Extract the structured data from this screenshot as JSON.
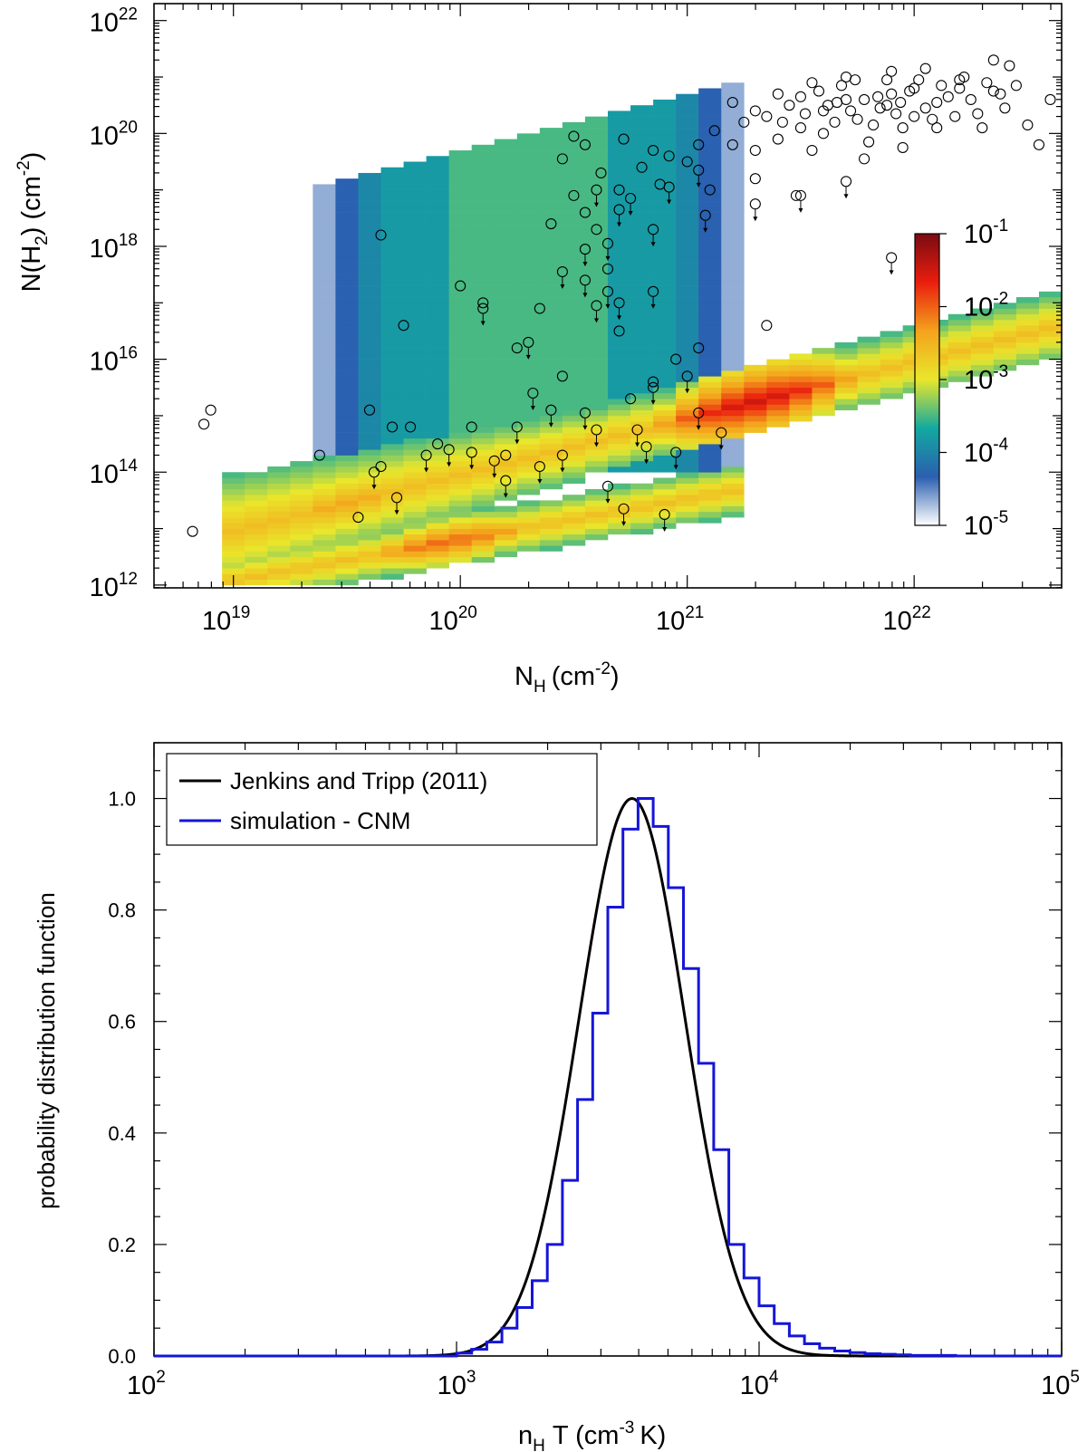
{
  "chart_data": [
    {
      "type": "heatmap",
      "title": "",
      "xlabel": "N",
      "xlabel_sub": "H",
      "xlabel_units": "(cm",
      "xlabel_units_exp": "-2",
      "xlabel_units_close": ")",
      "ylabel": "N(H",
      "ylabel_sub": "2",
      "ylabel_mid": ") (cm",
      "ylabel_exp": "-2",
      "ylabel_close": ")",
      "x_scale": "log",
      "y_scale": "log",
      "xlim_log10": [
        18.65,
        22.65
      ],
      "ylim_log10": [
        11.95,
        22.3
      ],
      "x_ticks": [
        {
          "base": "10",
          "exp": "19"
        },
        {
          "base": "10",
          "exp": "20"
        },
        {
          "base": "10",
          "exp": "21"
        },
        {
          "base": "10",
          "exp": "22"
        }
      ],
      "x_tick_log10": [
        19,
        20,
        21,
        22
      ],
      "y_ticks": [
        {
          "base": "10",
          "exp": "12"
        },
        {
          "base": "10",
          "exp": "14"
        },
        {
          "base": "10",
          "exp": "16"
        },
        {
          "base": "10",
          "exp": "18"
        },
        {
          "base": "10",
          "exp": "20"
        },
        {
          "base": "10",
          "exp": "22"
        }
      ],
      "y_tick_log10": [
        12,
        14,
        16,
        18,
        20,
        22
      ],
      "colorbar": {
        "scale": "log",
        "range_log10": [
          -5,
          -1
        ],
        "ticks": [
          {
            "base": "10",
            "exp": "-1"
          },
          {
            "base": "10",
            "exp": "-2"
          },
          {
            "base": "10",
            "exp": "-3"
          },
          {
            "base": "10",
            "exp": "-4"
          },
          {
            "base": "10",
            "exp": "-5"
          }
        ],
        "tick_log10": [
          -1,
          -2,
          -3,
          -4,
          -5
        ],
        "stops": [
          "#ffffff",
          "#2b5fb0",
          "#12a9a0",
          "#e9e72b",
          "#f4a21c",
          "#ea1e0e",
          "#7a0a12"
        ]
      },
      "density_model": {
        "bin_size_dex": 0.1,
        "upper_sequence": {
          "x0": 18.95,
          "y0": 12.9,
          "slope": 1.0,
          "peaks": [
            [
              19.5,
              -2.4
            ],
            [
              21.3,
              -1.5
            ]
          ]
        },
        "lower_sequence": {
          "x0": 18.95,
          "y0": 12.05,
          "slope": 0.72,
          "peaks": [
            [
              19.95,
              -2.0
            ]
          ]
        },
        "transition_region": {
          "x_range": [
            19.3,
            21.3
          ],
          "y_range": [
            14.0,
            19.0
          ],
          "level": -3.8
        }
      },
      "observations": {
        "marker": "open-circle",
        "detections": [
          [
            18.82,
            12.95
          ],
          [
            18.87,
            14.85
          ],
          [
            18.9,
            15.1
          ],
          [
            19.38,
            14.3
          ],
          [
            19.55,
            13.2
          ],
          [
            19.65,
            18.2
          ],
          [
            19.6,
            15.1
          ],
          [
            19.65,
            14.1
          ],
          [
            19.7,
            14.8
          ],
          [
            19.75,
            16.6
          ],
          [
            19.78,
            14.8
          ],
          [
            19.9,
            14.5
          ],
          [
            20.0,
            17.3
          ],
          [
            20.05,
            14.8
          ],
          [
            20.1,
            17.0
          ],
          [
            20.2,
            14.3
          ],
          [
            20.25,
            16.2
          ],
          [
            20.35,
            16.9
          ],
          [
            20.4,
            18.4
          ],
          [
            20.45,
            15.7
          ],
          [
            20.5,
            18.9
          ],
          [
            20.55,
            18.6
          ],
          [
            20.6,
            18.3
          ],
          [
            20.65,
            17.6
          ],
          [
            20.7,
            16.5
          ],
          [
            20.75,
            15.3
          ],
          [
            20.85,
            15.6
          ],
          [
            20.95,
            16.0
          ],
          [
            21.05,
            16.2
          ],
          [
            21.1,
            19.0
          ],
          [
            21.3,
            19.2
          ],
          [
            21.35,
            16.6
          ],
          [
            21.48,
            18.9
          ],
          [
            20.45,
            19.55
          ],
          [
            20.5,
            19.95
          ],
          [
            20.55,
            19.8
          ],
          [
            20.62,
            19.3
          ],
          [
            20.7,
            19.0
          ],
          [
            20.72,
            19.9
          ],
          [
            20.8,
            19.4
          ],
          [
            20.85,
            19.7
          ],
          [
            20.88,
            19.1
          ],
          [
            20.92,
            19.6
          ],
          [
            21.0,
            19.5
          ],
          [
            21.05,
            19.8
          ],
          [
            21.12,
            20.05
          ],
          [
            21.2,
            19.8
          ],
          [
            21.25,
            20.2
          ],
          [
            21.3,
            19.7
          ],
          [
            21.35,
            20.3
          ],
          [
            21.4,
            19.9
          ],
          [
            21.45,
            20.5
          ],
          [
            21.5,
            20.1
          ],
          [
            21.55,
            19.7
          ],
          [
            21.6,
            20.4
          ],
          [
            21.65,
            20.2
          ],
          [
            21.7,
            20.6
          ],
          [
            21.75,
            20.25
          ],
          [
            21.8,
            19.85
          ],
          [
            21.85,
            20.45
          ],
          [
            21.9,
            20.7
          ],
          [
            21.95,
            20.1
          ],
          [
            22.0,
            20.3
          ],
          [
            22.1,
            20.55
          ],
          [
            22.2,
            20.8
          ],
          [
            22.3,
            20.1
          ],
          [
            22.38,
            20.7
          ],
          [
            21.5,
            20.65
          ],
          [
            21.55,
            20.9
          ],
          [
            21.6,
            20.0
          ],
          [
            21.62,
            20.5
          ],
          [
            21.68,
            20.85
          ],
          [
            21.72,
            20.4
          ],
          [
            21.78,
            20.6
          ],
          [
            21.82,
            20.15
          ],
          [
            21.88,
            20.95
          ],
          [
            21.92,
            20.35
          ],
          [
            21.98,
            20.75
          ],
          [
            22.05,
            20.45
          ],
          [
            22.12,
            20.85
          ],
          [
            22.18,
            20.3
          ],
          [
            22.25,
            20.6
          ],
          [
            22.32,
            20.9
          ],
          [
            22.4,
            20.45
          ],
          [
            22.45,
            20.85
          ],
          [
            21.4,
            20.7
          ],
          [
            21.52,
            20.35
          ],
          [
            21.58,
            20.75
          ],
          [
            21.66,
            20.55
          ],
          [
            21.74,
            20.95
          ],
          [
            21.84,
            20.65
          ],
          [
            21.94,
            20.55
          ],
          [
            22.02,
            20.95
          ],
          [
            22.08,
            20.25
          ],
          [
            22.15,
            20.65
          ],
          [
            22.22,
            21.0
          ],
          [
            22.28,
            20.35
          ],
          [
            22.35,
            20.75
          ],
          [
            21.78,
            19.55
          ],
          [
            21.95,
            19.75
          ],
          [
            22.1,
            20.1
          ],
          [
            22.5,
            20.15
          ],
          [
            22.55,
            19.8
          ],
          [
            22.6,
            20.6
          ],
          [
            21.3,
            20.4
          ],
          [
            21.2,
            20.55
          ],
          [
            21.42,
            20.2
          ],
          [
            21.88,
            20.5
          ],
          [
            22.0,
            20.8
          ],
          [
            22.2,
            20.95
          ],
          [
            22.42,
            21.2
          ],
          [
            22.35,
            21.3
          ],
          [
            21.7,
            21.0
          ],
          [
            21.9,
            21.1
          ],
          [
            22.05,
            21.15
          ]
        ],
        "upper_limits": [
          [
            19.62,
            14.0
          ],
          [
            19.72,
            13.55
          ],
          [
            19.85,
            14.3
          ],
          [
            19.95,
            14.4
          ],
          [
            20.05,
            14.35
          ],
          [
            20.15,
            14.2
          ],
          [
            20.2,
            13.85
          ],
          [
            20.35,
            14.1
          ],
          [
            20.45,
            14.3
          ],
          [
            20.55,
            15.05
          ],
          [
            20.6,
            14.75
          ],
          [
            20.65,
            13.75
          ],
          [
            20.72,
            13.35
          ],
          [
            20.78,
            14.75
          ],
          [
            20.82,
            14.45
          ],
          [
            20.9,
            13.25
          ],
          [
            20.95,
            14.35
          ],
          [
            21.05,
            15.05
          ],
          [
            21.15,
            14.7
          ],
          [
            20.25,
            14.8
          ],
          [
            20.32,
            15.4
          ],
          [
            20.4,
            15.1
          ],
          [
            20.85,
            15.5
          ],
          [
            21.0,
            15.7
          ],
          [
            20.1,
            16.9
          ],
          [
            20.3,
            16.3
          ],
          [
            20.55,
            17.4
          ],
          [
            20.6,
            16.95
          ],
          [
            20.7,
            17.0
          ],
          [
            20.85,
            17.2
          ],
          [
            20.45,
            17.55
          ],
          [
            20.55,
            17.95
          ],
          [
            20.65,
            18.05
          ],
          [
            20.7,
            18.65
          ],
          [
            20.85,
            18.3
          ],
          [
            21.08,
            18.55
          ],
          [
            21.3,
            18.75
          ],
          [
            20.6,
            19.0
          ],
          [
            20.75,
            18.85
          ],
          [
            20.92,
            19.05
          ],
          [
            21.5,
            18.9
          ],
          [
            21.7,
            19.15
          ],
          [
            21.9,
            17.8
          ],
          [
            21.05,
            19.35
          ],
          [
            20.65,
            17.2
          ]
        ]
      }
    },
    {
      "type": "line",
      "title": "",
      "xlabel": "n",
      "xlabel_sub": "H",
      "xlabel_units": "T (cm",
      "xlabel_units_exp": "-3",
      "xlabel_units_close": "K)",
      "ylabel": "probability distribution function",
      "x_scale": "log",
      "xlim_log10": [
        2,
        5
      ],
      "ylim": [
        0,
        1.1
      ],
      "x_ticks": [
        {
          "base": "10",
          "exp": "2"
        },
        {
          "base": "10",
          "exp": "3"
        },
        {
          "base": "10",
          "exp": "4"
        },
        {
          "base": "10",
          "exp": "5"
        }
      ],
      "x_tick_log10": [
        2,
        3,
        4,
        5
      ],
      "y_ticks": [
        "0.0",
        "0.2",
        "0.4",
        "0.6",
        "0.8",
        "1.0"
      ],
      "y_tick_values": [
        0,
        0.2,
        0.4,
        0.6,
        0.8,
        1.0
      ],
      "legend_position": "top-left",
      "series": [
        {
          "name": "Jenkins and Tripp (2011)",
          "color": "#000000",
          "kind": "curve",
          "model": "lognormal",
          "peak_log10": 3.58,
          "sigma_log10": 0.175,
          "peak_value": 1.0
        },
        {
          "name": "simulation - CNM",
          "color": "#1515d8",
          "kind": "histogram",
          "bin_edges_log10": [
            3.0,
            3.05,
            3.1,
            3.15,
            3.2,
            3.25,
            3.3,
            3.35,
            3.4,
            3.45,
            3.5,
            3.55,
            3.6,
            3.65,
            3.7,
            3.75,
            3.8,
            3.85,
            3.9,
            3.95,
            4.0,
            4.05,
            4.1,
            4.15,
            4.2,
            4.25,
            4.3,
            4.35,
            4.4,
            4.45,
            4.5,
            4.55,
            4.6,
            4.65,
            4.7,
            4.75,
            4.8,
            4.85,
            4.9,
            4.95,
            5.0
          ],
          "values": [
            0.005,
            0.012,
            0.025,
            0.05,
            0.087,
            0.135,
            0.2,
            0.315,
            0.46,
            0.615,
            0.805,
            0.945,
            1.0,
            0.95,
            0.84,
            0.695,
            0.525,
            0.37,
            0.2,
            0.14,
            0.09,
            0.058,
            0.036,
            0.022,
            0.014,
            0.009,
            0.006,
            0.004,
            0.003,
            0.002,
            0.001,
            0.001,
            0.001,
            0.0,
            0.0,
            0.0,
            0.0,
            0.0,
            0.0,
            0.0
          ]
        }
      ]
    }
  ]
}
